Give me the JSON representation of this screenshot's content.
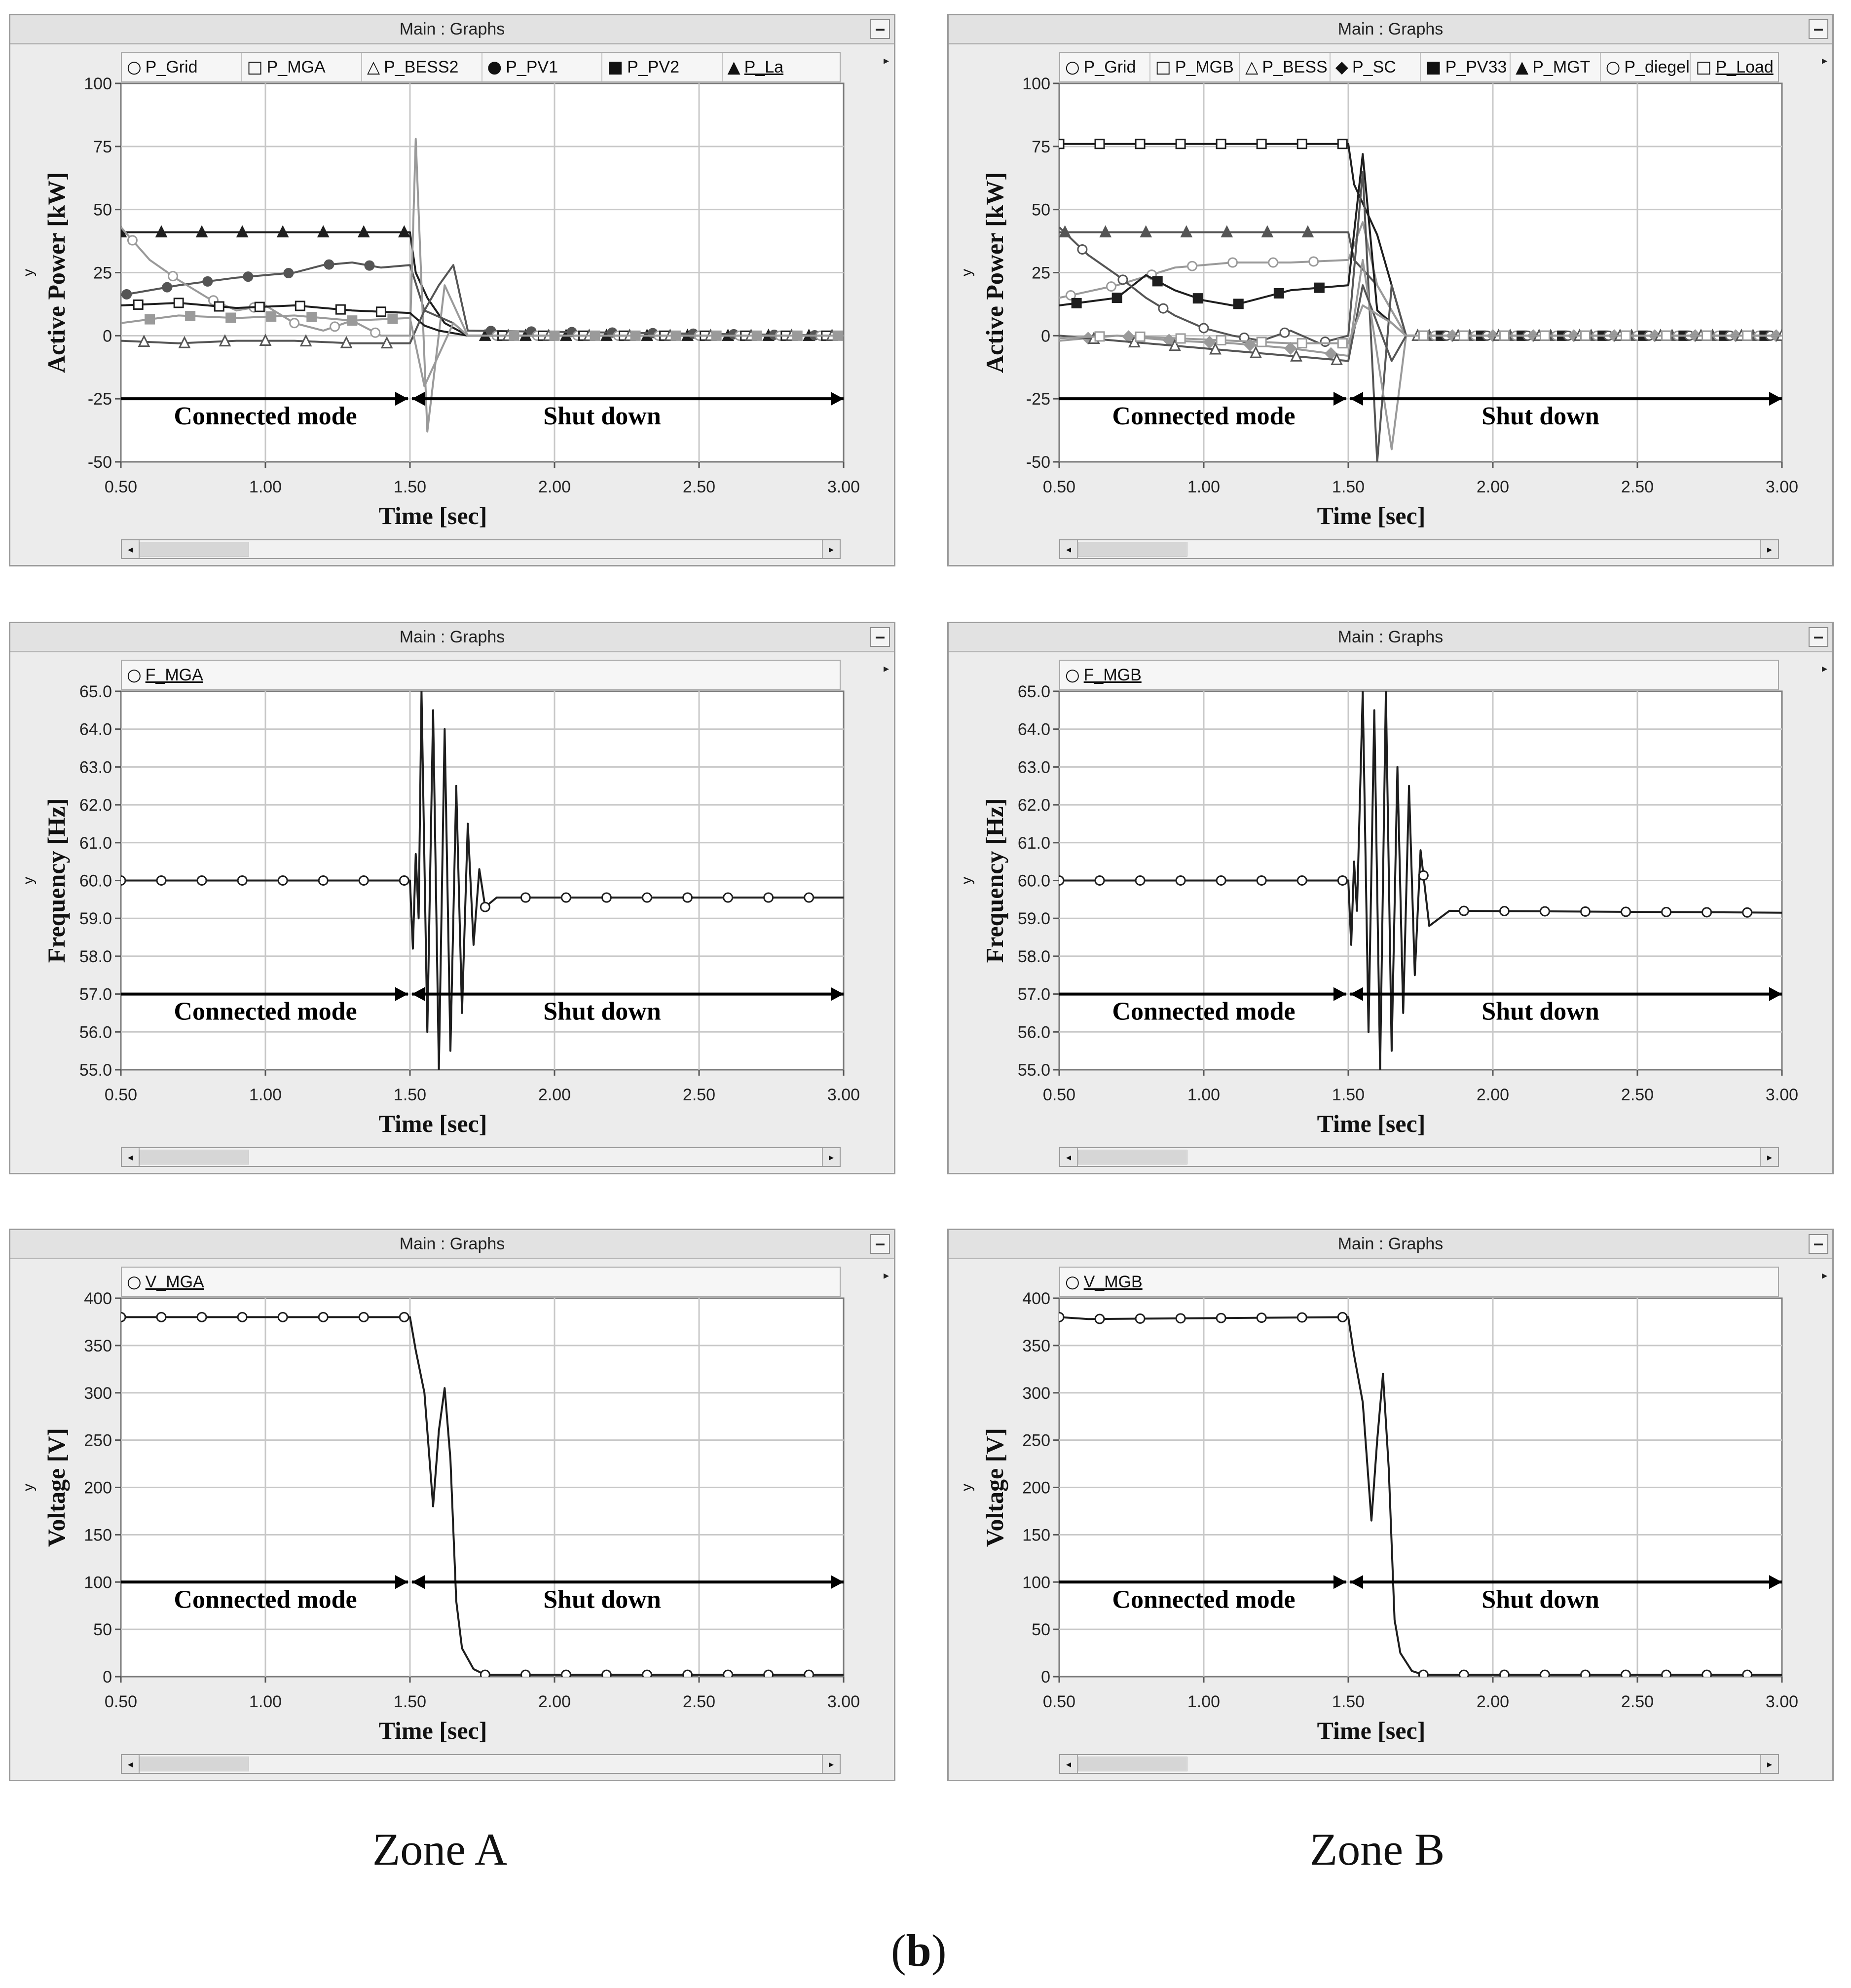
{
  "window_title": "Main : Graphs",
  "minimize_label": "–",
  "side_arrow": "▸",
  "x_axis_title": "Time [sec]",
  "x_ticks": [
    "0.50",
    "1.00",
    "1.50",
    "2.00",
    "2.50",
    "3.00"
  ],
  "y_axis_symbol": "y",
  "annotation_left": "Connected mode",
  "annotation_right": "Shut down",
  "scroll_left": "◂",
  "scroll_right": "▸",
  "zone_a": "Zone A",
  "zone_b": "Zone B",
  "caption": {
    "open": "(",
    "letter": "b",
    "close": ")"
  },
  "colors": {
    "series_dark": "#1e1e1e",
    "series_mid": "#555555",
    "series_light": "#9a9a9a",
    "grid": "#c8c8c8",
    "plot_bg": "#ffffff"
  },
  "chart_data": [
    {
      "id": "zoneA-power",
      "type": "line",
      "zone": "Zone A",
      "ylabel": "Active Power [kW]",
      "ylim": [
        -50,
        100
      ],
      "yticks": [
        "100",
        "75",
        "50",
        "25",
        "0",
        "-25",
        "-50"
      ],
      "xlim": [
        0.5,
        3.0
      ],
      "legend": [
        {
          "label": "P_Grid",
          "marker": "circle-open"
        },
        {
          "label": "P_MGA",
          "marker": "square-open"
        },
        {
          "label": "P_BESS2",
          "marker": "triangle-open"
        },
        {
          "label": "P_PV1",
          "marker": "circle-filled"
        },
        {
          "label": "P_PV2",
          "marker": "square-filled"
        },
        {
          "label": "P_La",
          "marker": "triangle-filled"
        }
      ],
      "series": [
        {
          "name": "P_La",
          "marker": "triangle-filled",
          "x": [
            0.5,
            1.5,
            1.52,
            1.56,
            1.62,
            1.7,
            3.0
          ],
          "y": [
            41,
            41,
            25,
            15,
            5,
            0,
            0
          ]
        },
        {
          "name": "P_PV1",
          "marker": "circle-filled",
          "x": [
            0.5,
            0.7,
            0.9,
            1.1,
            1.2,
            1.3,
            1.4,
            1.5,
            1.55,
            1.6,
            1.65,
            1.7,
            3.0
          ],
          "y": [
            16,
            20,
            23,
            25,
            28,
            29,
            27,
            28,
            10,
            20,
            28,
            2,
            0
          ]
        },
        {
          "name": "P_Grid",
          "marker": "circle-open",
          "x": [
            0.5,
            0.6,
            0.7,
            0.8,
            0.9,
            1.0,
            1.1,
            1.2,
            1.3,
            1.4,
            1.5,
            1.52,
            1.56,
            1.62,
            1.7,
            3.0
          ],
          "y": [
            43,
            30,
            22,
            15,
            10,
            12,
            5,
            2,
            6,
            0,
            0,
            78,
            -38,
            20,
            0,
            0
          ]
        },
        {
          "name": "P_MGA",
          "marker": "square-open",
          "x": [
            0.5,
            0.7,
            0.9,
            1.1,
            1.3,
            1.5,
            1.55,
            1.6,
            1.7,
            3.0
          ],
          "y": [
            12,
            13,
            11,
            12,
            10,
            9,
            4,
            2,
            0,
            0
          ]
        },
        {
          "name": "P_BESS2",
          "marker": "triangle-open",
          "x": [
            0.5,
            0.7,
            0.9,
            1.1,
            1.3,
            1.5,
            1.55,
            1.65,
            1.7,
            3.0
          ],
          "y": [
            -2,
            -3,
            -2,
            -2,
            -3,
            -3,
            10,
            5,
            0,
            0
          ]
        },
        {
          "name": "P_PV2",
          "marker": "square-filled",
          "x": [
            0.5,
            0.7,
            0.9,
            1.1,
            1.3,
            1.5,
            1.55,
            1.65,
            1.7,
            3.0
          ],
          "y": [
            5,
            8,
            7,
            8,
            6,
            7,
            -20,
            5,
            0,
            0
          ]
        }
      ]
    },
    {
      "id": "zoneB-power",
      "type": "line",
      "zone": "Zone B",
      "ylabel": "Active Power [kW]",
      "ylim": [
        -50,
        100
      ],
      "yticks": [
        "100",
        "75",
        "50",
        "25",
        "0",
        "-25",
        "-50"
      ],
      "xlim": [
        0.5,
        3.0
      ],
      "legend": [
        {
          "label": "P_Grid",
          "marker": "circle-open"
        },
        {
          "label": "P_MGB",
          "marker": "square-open"
        },
        {
          "label": "P_BESS",
          "marker": "triangle-open"
        },
        {
          "label": "P_SC",
          "marker": "diamond-filled"
        },
        {
          "label": "P_PV33",
          "marker": "square-filled"
        },
        {
          "label": "P_MGT",
          "marker": "triangle-filled"
        },
        {
          "label": "P_diegel",
          "marker": "circle-open"
        },
        {
          "label": "P_Load",
          "marker": "square-open"
        }
      ],
      "series": [
        {
          "name": "P_Load",
          "marker": "square-open",
          "x": [
            0.5,
            1.5,
            1.52,
            1.6,
            1.7,
            3.0
          ],
          "y": [
            76,
            76,
            60,
            40,
            0,
            0
          ]
        },
        {
          "name": "P_MGT",
          "marker": "triangle-filled",
          "x": [
            0.5,
            1.5,
            1.52,
            1.6,
            1.7,
            3.0
          ],
          "y": [
            41,
            41,
            30,
            20,
            0,
            0
          ]
        },
        {
          "name": "P_diegel",
          "marker": "circle-open",
          "x": [
            0.5,
            0.7,
            0.9,
            1.1,
            1.3,
            1.5,
            1.55,
            1.6,
            1.7,
            3.0
          ],
          "y": [
            15,
            20,
            27,
            29,
            29,
            30,
            45,
            20,
            0,
            0
          ]
        },
        {
          "name": "P_PV33",
          "marker": "square-filled",
          "x": [
            0.5,
            0.7,
            0.8,
            0.9,
            1.0,
            1.1,
            1.3,
            1.5,
            1.55,
            1.6,
            1.7,
            3.0
          ],
          "y": [
            12,
            15,
            24,
            18,
            14,
            12,
            18,
            20,
            72,
            10,
            0,
            0
          ]
        },
        {
          "name": "P_Grid",
          "marker": "circle-open",
          "x": [
            0.5,
            0.6,
            0.7,
            0.8,
            0.9,
            1.0,
            1.1,
            1.2,
            1.3,
            1.4,
            1.5,
            1.55,
            1.6,
            1.65,
            1.7,
            3.0
          ],
          "y": [
            43,
            32,
            24,
            15,
            8,
            3,
            0,
            -2,
            2,
            -3,
            0,
            65,
            -50,
            20,
            0,
            0
          ]
        },
        {
          "name": "P_SC",
          "marker": "diamond-filled",
          "x": [
            0.5,
            0.7,
            0.9,
            1.1,
            1.3,
            1.5,
            1.55,
            1.65,
            1.7,
            3.0
          ],
          "y": [
            -2,
            0,
            -2,
            -3,
            -5,
            -8,
            30,
            -45,
            0,
            0
          ]
        },
        {
          "name": "P_BESS",
          "marker": "triangle-open",
          "x": [
            0.5,
            0.7,
            0.9,
            1.1,
            1.3,
            1.5,
            1.55,
            1.65,
            1.7,
            3.0
          ],
          "y": [
            0,
            -2,
            -4,
            -6,
            -8,
            -10,
            20,
            -10,
            0,
            0
          ]
        },
        {
          "name": "P_MGB",
          "marker": "square-open",
          "x": [
            0.5,
            0.7,
            0.9,
            1.1,
            1.3,
            1.5,
            1.55,
            1.65,
            1.7,
            3.0
          ],
          "y": [
            -1,
            0,
            -1,
            -2,
            -3,
            -3,
            12,
            5,
            0,
            0
          ]
        }
      ]
    },
    {
      "id": "zoneA-freq",
      "type": "line",
      "zone": "Zone A",
      "ylabel": "Frequency [Hz]",
      "ylim": [
        55,
        65
      ],
      "yticks": [
        "65.0",
        "64.0",
        "63.0",
        "62.0",
        "61.0",
        "60.0",
        "59.0",
        "58.0",
        "57.0",
        "56.0",
        "55.0"
      ],
      "xlim": [
        0.5,
        3.0
      ],
      "legend": [
        {
          "label": "F_MGA",
          "marker": "circle-open"
        }
      ],
      "series": [
        {
          "name": "F_MGA",
          "marker": "circle-open",
          "x": [
            0.5,
            1.5,
            1.51,
            1.52,
            1.53,
            1.54,
            1.56,
            1.58,
            1.6,
            1.62,
            1.64,
            1.66,
            1.68,
            1.7,
            1.72,
            1.74,
            1.76,
            1.8,
            3.0
          ],
          "y": [
            60,
            60,
            58.2,
            60.7,
            59,
            65,
            56,
            64.5,
            55,
            64,
            55.5,
            62.5,
            56.5,
            61.5,
            58.3,
            60.3,
            59.3,
            59.55,
            59.55
          ]
        }
      ]
    },
    {
      "id": "zoneB-freq",
      "type": "line",
      "zone": "Zone B",
      "ylabel": "Frequency [Hz]",
      "ylim": [
        55,
        65
      ],
      "yticks": [
        "65.0",
        "64.0",
        "63.0",
        "62.0",
        "61.0",
        "60.0",
        "59.0",
        "58.0",
        "57.0",
        "56.0",
        "55.0"
      ],
      "xlim": [
        0.5,
        3.0
      ],
      "legend": [
        {
          "label": "F_MGB",
          "marker": "circle-open"
        }
      ],
      "series": [
        {
          "name": "F_MGB",
          "marker": "circle-open",
          "x": [
            0.5,
            1.5,
            1.51,
            1.52,
            1.53,
            1.55,
            1.57,
            1.59,
            1.61,
            1.63,
            1.65,
            1.67,
            1.69,
            1.71,
            1.73,
            1.75,
            1.78,
            1.85,
            3.0
          ],
          "y": [
            60,
            60,
            58.3,
            60.5,
            59.2,
            65,
            56,
            64.5,
            55,
            65,
            55.5,
            63,
            56.5,
            62.5,
            57.5,
            60.8,
            58.8,
            59.2,
            59.15
          ]
        }
      ]
    },
    {
      "id": "zoneA-volt",
      "type": "line",
      "zone": "Zone A",
      "ylabel": "Voltage [V]",
      "ylim": [
        0,
        400
      ],
      "yticks": [
        "400",
        "350",
        "300",
        "250",
        "200",
        "150",
        "100",
        "50",
        "0"
      ],
      "xlim": [
        0.5,
        3.0
      ],
      "legend": [
        {
          "label": "V_MGA",
          "marker": "circle-open"
        }
      ],
      "series": [
        {
          "name": "V_MGA",
          "marker": "circle-open",
          "x": [
            0.5,
            1.5,
            1.52,
            1.55,
            1.58,
            1.6,
            1.62,
            1.64,
            1.66,
            1.68,
            1.72,
            1.76,
            3.0
          ],
          "y": [
            380,
            380,
            345,
            300,
            180,
            260,
            305,
            230,
            80,
            30,
            8,
            2,
            2
          ]
        }
      ]
    },
    {
      "id": "zoneB-volt",
      "type": "line",
      "zone": "Zone B",
      "ylabel": "Voltage [V]",
      "ylim": [
        0,
        400
      ],
      "yticks": [
        "400",
        "350",
        "300",
        "250",
        "200",
        "150",
        "100",
        "50",
        "0"
      ],
      "xlim": [
        0.5,
        3.0
      ],
      "legend": [
        {
          "label": "V_MGB",
          "marker": "circle-open"
        }
      ],
      "series": [
        {
          "name": "V_MGB",
          "marker": "circle-open",
          "x": [
            0.5,
            0.6,
            1.5,
            1.52,
            1.55,
            1.58,
            1.6,
            1.62,
            1.64,
            1.66,
            1.68,
            1.72,
            1.76,
            3.0
          ],
          "y": [
            380,
            378,
            380,
            340,
            290,
            165,
            250,
            320,
            220,
            60,
            25,
            6,
            2,
            2
          ]
        }
      ]
    }
  ]
}
